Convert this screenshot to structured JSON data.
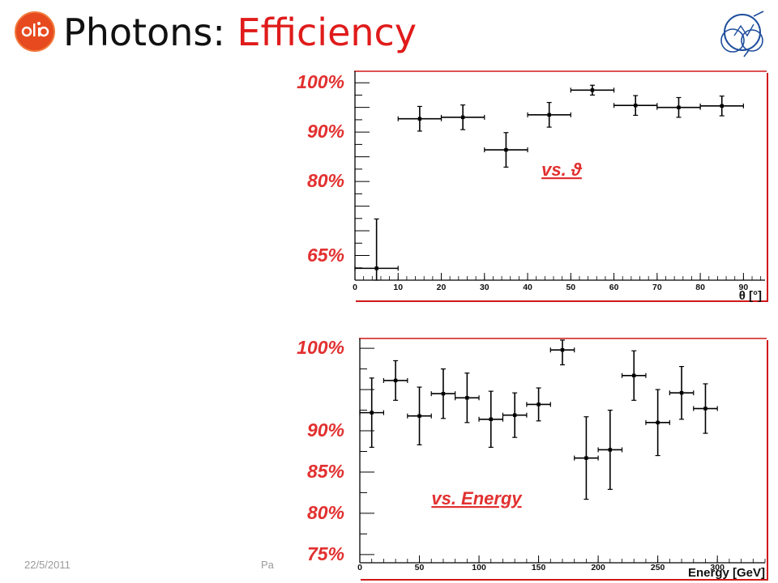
{
  "slide": {
    "title_prefix": "Photons: ",
    "title_accent": "Efficiency",
    "footer_date": "22/5/2011",
    "footer_page": "Pa",
    "accent_color": "#e01b1b",
    "label_color": "#e23030",
    "logos": [
      "clic-logo-icon",
      "cern-logo-icon"
    ]
  },
  "chart_data": [
    {
      "type": "scatter",
      "annotation": "vs. ϑ",
      "xlabel": "θ [°]",
      "xlim": [
        0,
        95
      ],
      "ylim": [
        0.6,
        1.02
      ],
      "x_ticks": [
        0,
        10,
        20,
        30,
        40,
        50,
        60,
        70,
        80,
        90
      ],
      "y_tick_labels": [
        {
          "value": 1.0,
          "label": "100%"
        },
        {
          "value": 0.9,
          "label": "90%"
        },
        {
          "value": 0.8,
          "label": "80%"
        },
        {
          "value": 0.65,
          "label": "65%"
        }
      ],
      "points": [
        {
          "x": 5,
          "xerr": 5,
          "y": 0.624,
          "yerr": 0.1
        },
        {
          "x": 15,
          "xerr": 5,
          "y": 0.927,
          "yerr": 0.025
        },
        {
          "x": 25,
          "xerr": 5,
          "y": 0.93,
          "yerr": 0.025
        },
        {
          "x": 35,
          "xerr": 5,
          "y": 0.864,
          "yerr": 0.035
        },
        {
          "x": 45,
          "xerr": 5,
          "y": 0.935,
          "yerr": 0.025
        },
        {
          "x": 55,
          "xerr": 5,
          "y": 0.985,
          "yerr": 0.01
        },
        {
          "x": 65,
          "xerr": 5,
          "y": 0.954,
          "yerr": 0.02
        },
        {
          "x": 75,
          "xerr": 5,
          "y": 0.95,
          "yerr": 0.02
        },
        {
          "x": 85,
          "xerr": 5,
          "y": 0.953,
          "yerr": 0.02
        }
      ]
    },
    {
      "type": "scatter",
      "annotation": "vs. Energy",
      "xlabel": "Energy [GeV]",
      "xlim": [
        0,
        340
      ],
      "ylim": [
        0.74,
        1.01
      ],
      "x_ticks": [
        0,
        50,
        100,
        150,
        200,
        250,
        300
      ],
      "y_tick_labels": [
        {
          "value": 1.0,
          "label": "100%"
        },
        {
          "value": 0.9,
          "label": "90%"
        },
        {
          "value": 0.85,
          "label": "85%"
        },
        {
          "value": 0.8,
          "label": "80%"
        },
        {
          "value": 0.75,
          "label": "75%"
        }
      ],
      "points": [
        {
          "x": 10,
          "xerr": 10,
          "y": 0.922,
          "yerr": 0.042
        },
        {
          "x": 30,
          "xerr": 10,
          "y": 0.961,
          "yerr": 0.024
        },
        {
          "x": 50,
          "xerr": 10,
          "y": 0.918,
          "yerr": 0.035
        },
        {
          "x": 70,
          "xerr": 10,
          "y": 0.945,
          "yerr": 0.03
        },
        {
          "x": 90,
          "xerr": 10,
          "y": 0.94,
          "yerr": 0.03
        },
        {
          "x": 110,
          "xerr": 10,
          "y": 0.914,
          "yerr": 0.034
        },
        {
          "x": 130,
          "xerr": 10,
          "y": 0.919,
          "yerr": 0.027
        },
        {
          "x": 150,
          "xerr": 10,
          "y": 0.932,
          "yerr": 0.02
        },
        {
          "x": 170,
          "xerr": 10,
          "y": 0.998,
          "yerr": 0.018
        },
        {
          "x": 190,
          "xerr": 10,
          "y": 0.867,
          "yerr": 0.05
        },
        {
          "x": 210,
          "xerr": 10,
          "y": 0.877,
          "yerr": 0.048
        },
        {
          "x": 230,
          "xerr": 10,
          "y": 0.967,
          "yerr": 0.03
        },
        {
          "x": 250,
          "xerr": 10,
          "y": 0.91,
          "yerr": 0.04
        },
        {
          "x": 270,
          "xerr": 10,
          "y": 0.946,
          "yerr": 0.032
        },
        {
          "x": 290,
          "xerr": 10,
          "y": 0.927,
          "yerr": 0.03
        }
      ]
    }
  ]
}
